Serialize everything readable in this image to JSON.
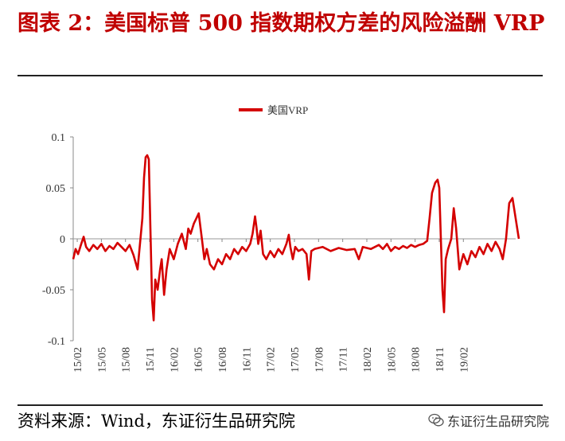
{
  "header": {
    "title": "图表 2：美国标普 500 指数期权方差的风险溢酬 VRP"
  },
  "footer": {
    "source": "资料来源：Wind，东证衍生品研究院",
    "watermark": "东证衍生品研究院",
    "watermark_icon": "wechat-icon"
  },
  "colors": {
    "title": "#c00000",
    "series": "#d40000"
  },
  "chart_data": {
    "type": "line",
    "title": "",
    "xlabel": "",
    "ylabel": "",
    "ylim": [
      -0.1,
      0.1
    ],
    "yticks": [
      0.1,
      0.05,
      0,
      -0.05,
      -0.1
    ],
    "yticklabels": [
      "0.1",
      "0.05",
      "0",
      "-0.05",
      "-0.1"
    ],
    "xticklabels": [
      "15/02",
      "15/05",
      "15/08",
      "15/11",
      "16/02",
      "16/05",
      "16/08",
      "16/11",
      "17/02",
      "17/05",
      "17/08",
      "17/11",
      "18/02",
      "18/05",
      "18/08",
      "18/11",
      "19/02"
    ],
    "x_unit": "month index, 0 = 2015-02",
    "x_range": [
      0,
      55
    ],
    "legend": {
      "position": "top-center",
      "entries": [
        "美国VRP"
      ]
    },
    "grid": false,
    "series": [
      {
        "name": "美国VRP",
        "points": [
          [
            0,
            -0.02
          ],
          [
            0.3,
            -0.01
          ],
          [
            0.6,
            -0.015
          ],
          [
            1,
            -0.005
          ],
          [
            1.3,
            0.002
          ],
          [
            1.6,
            -0.008
          ],
          [
            2,
            -0.012
          ],
          [
            2.5,
            -0.006
          ],
          [
            3,
            -0.01
          ],
          [
            3.5,
            -0.005
          ],
          [
            4,
            -0.012
          ],
          [
            4.5,
            -0.007
          ],
          [
            5,
            -0.01
          ],
          [
            5.5,
            -0.004
          ],
          [
            6,
            -0.008
          ],
          [
            6.5,
            -0.012
          ],
          [
            7,
            -0.006
          ],
          [
            7.5,
            -0.016
          ],
          [
            8,
            -0.03
          ],
          [
            8.3,
            -0.005
          ],
          [
            8.6,
            0.02
          ],
          [
            8.8,
            0.06
          ],
          [
            9,
            0.08
          ],
          [
            9.2,
            0.082
          ],
          [
            9.4,
            0.078
          ],
          [
            9.6,
            0.01
          ],
          [
            9.8,
            -0.06
          ],
          [
            10,
            -0.08
          ],
          [
            10.2,
            -0.04
          ],
          [
            10.5,
            -0.05
          ],
          [
            10.8,
            -0.03
          ],
          [
            11,
            -0.02
          ],
          [
            11.3,
            -0.055
          ],
          [
            11.6,
            -0.03
          ],
          [
            12,
            -0.01
          ],
          [
            12.5,
            -0.02
          ],
          [
            13,
            -0.005
          ],
          [
            13.5,
            0.005
          ],
          [
            14,
            -0.01
          ],
          [
            14.3,
            0.01
          ],
          [
            14.6,
            0.005
          ],
          [
            15,
            0.015
          ],
          [
            15.3,
            0.02
          ],
          [
            15.6,
            0.025
          ],
          [
            16,
            0.0
          ],
          [
            16.3,
            -0.02
          ],
          [
            16.6,
            -0.01
          ],
          [
            17,
            -0.025
          ],
          [
            17.5,
            -0.03
          ],
          [
            18,
            -0.02
          ],
          [
            18.5,
            -0.025
          ],
          [
            19,
            -0.015
          ],
          [
            19.5,
            -0.02
          ],
          [
            20,
            -0.01
          ],
          [
            20.5,
            -0.015
          ],
          [
            21,
            -0.008
          ],
          [
            21.5,
            -0.012
          ],
          [
            22,
            -0.005
          ],
          [
            22.3,
            0.005
          ],
          [
            22.6,
            0.022
          ],
          [
            22.8,
            0.01
          ],
          [
            23,
            -0.005
          ],
          [
            23.3,
            0.008
          ],
          [
            23.6,
            -0.015
          ],
          [
            24,
            -0.02
          ],
          [
            24.5,
            -0.012
          ],
          [
            25,
            -0.018
          ],
          [
            25.5,
            -0.01
          ],
          [
            26,
            -0.015
          ],
          [
            26.5,
            -0.005
          ],
          [
            26.8,
            0.004
          ],
          [
            27,
            -0.008
          ],
          [
            27.3,
            -0.02
          ],
          [
            27.6,
            -0.008
          ],
          [
            28,
            -0.012
          ],
          [
            28.5,
            -0.01
          ],
          [
            29,
            -0.015
          ],
          [
            29.3,
            -0.04
          ],
          [
            29.6,
            -0.012
          ],
          [
            30,
            -0.01
          ],
          [
            31,
            -0.008
          ],
          [
            32,
            -0.012
          ],
          [
            33,
            -0.009
          ],
          [
            34,
            -0.011
          ],
          [
            35,
            -0.01
          ],
          [
            35.5,
            -0.02
          ],
          [
            36,
            -0.008
          ],
          [
            37,
            -0.01
          ],
          [
            38,
            -0.006
          ],
          [
            38.5,
            -0.01
          ],
          [
            39,
            -0.005
          ],
          [
            39.5,
            -0.012
          ],
          [
            40,
            -0.008
          ],
          [
            40.5,
            -0.01
          ],
          [
            41,
            -0.007
          ],
          [
            41.5,
            -0.009
          ],
          [
            42,
            -0.006
          ],
          [
            42.5,
            -0.008
          ],
          [
            43,
            -0.006
          ],
          [
            43.5,
            -0.005
          ],
          [
            44,
            -0.002
          ],
          [
            44.3,
            0.02
          ],
          [
            44.6,
            0.045
          ],
          [
            45,
            0.055
          ],
          [
            45.3,
            0.058
          ],
          [
            45.5,
            0.05
          ],
          [
            45.7,
            0.0
          ],
          [
            45.9,
            -0.05
          ],
          [
            46.1,
            -0.072
          ],
          [
            46.3,
            -0.02
          ],
          [
            46.6,
            -0.01
          ],
          [
            47,
            0.0
          ],
          [
            47.3,
            0.03
          ],
          [
            47.6,
            0.01
          ],
          [
            48,
            -0.03
          ],
          [
            48.5,
            -0.015
          ],
          [
            49,
            -0.025
          ],
          [
            49.5,
            -0.012
          ],
          [
            50,
            -0.018
          ],
          [
            50.5,
            -0.008
          ],
          [
            51,
            -0.015
          ],
          [
            51.5,
            -0.005
          ],
          [
            52,
            -0.012
          ],
          [
            52.5,
            -0.003
          ],
          [
            53,
            -0.01
          ],
          [
            53.4,
            -0.02
          ],
          [
            53.8,
            0.0
          ],
          [
            54.2,
            0.035
          ],
          [
            54.6,
            0.04
          ],
          [
            55,
            0.02
          ],
          [
            55.4,
            0.0
          ]
        ]
      }
    ]
  }
}
